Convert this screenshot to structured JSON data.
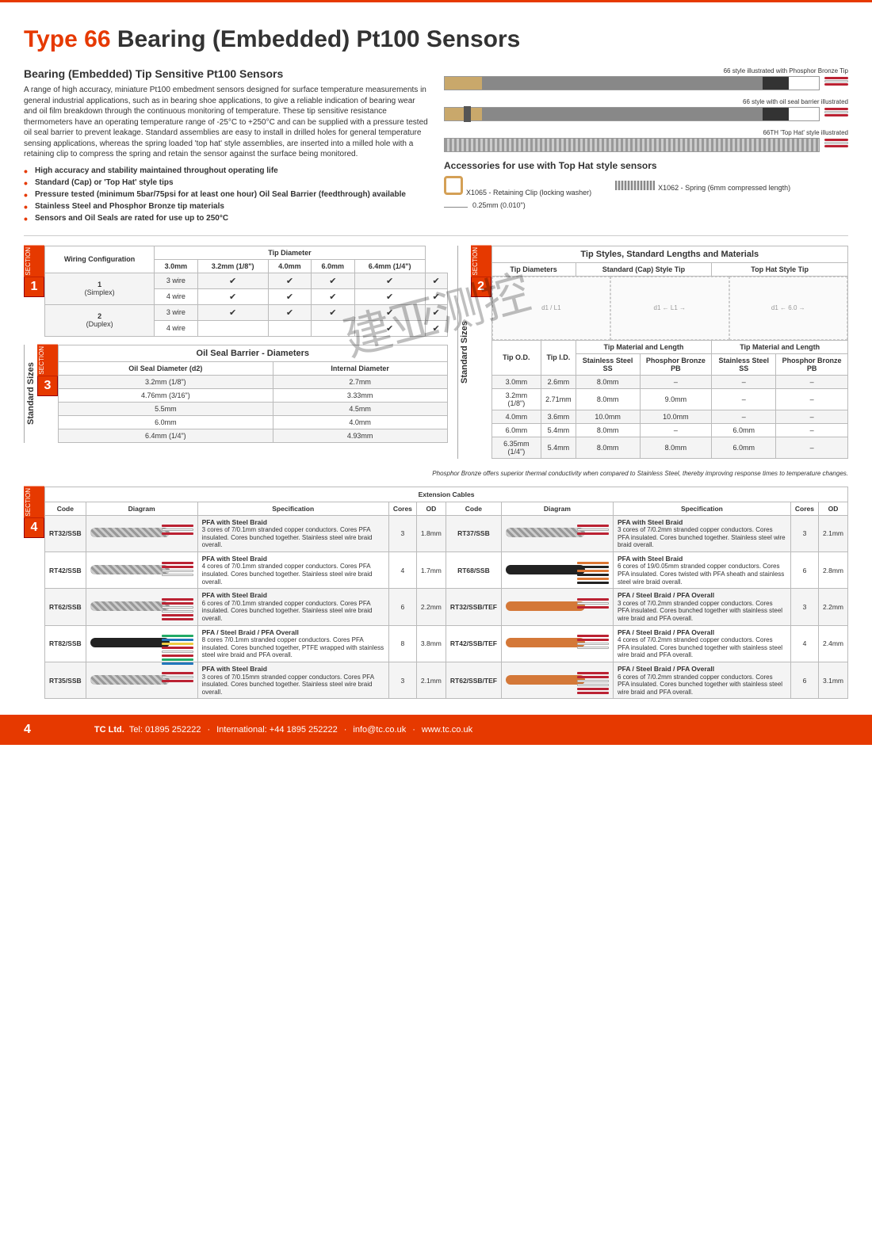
{
  "title_prefix": "Type 66",
  "title_rest": "Bearing (Embedded) Pt100 Sensors",
  "intro": {
    "heading": "Bearing (Embedded) Tip Sensitive Pt100 Sensors",
    "paragraph": "A range of high accuracy, miniature Pt100 embedment sensors designed for surface temperature measurements in general industrial applications, such as in bearing shoe applications, to give a reliable indication of bearing wear and oil film breakdown through the continuous monitoring of temperature. These tip sensitive resistance thermometers have an operating temperature range of -25°C to +250°C and can be supplied with a pressure tested oil seal barrier to prevent leakage. Standard assemblies are easy to install in drilled holes for general temperature sensing applications, whereas the spring loaded 'top hat' style assemblies, are inserted into a milled hole with a retaining clip to compress the spring and retain the sensor against the surface being monitored.",
    "bullets": [
      "High accuracy and stability maintained throughout operating life",
      "Standard (Cap) or 'Top Hat' style tips",
      "Pressure tested (minimum 5bar/75psi for at least one hour) Oil Seal Barrier (feedthrough) available",
      "Stainless Steel and Phosphor Bronze tip materials",
      "Sensors and Oil Seals are rated for use up to 250°C"
    ]
  },
  "illustrations": {
    "a": "66 style illustrated with Phosphor Bronze Tip",
    "b": "66 style with oil seal barrier illustrated",
    "c": "66TH 'Top Hat' style illustrated"
  },
  "accessories": {
    "heading": "Accessories for use with Top Hat style sensors",
    "x1065": "X1065 - Retaining Clip (locking washer)",
    "x1062": "X1062 - Spring (6mm compressed length)",
    "thickness": "0.25mm (0.010\")"
  },
  "section1": {
    "title": "Wiring Configuration",
    "tipdia": "Tip Diameter",
    "cols": [
      "3.0mm",
      "3.2mm (1/8\")",
      "4.0mm",
      "6.0mm",
      "6.4mm (1/4\")"
    ],
    "rows": [
      {
        "group": "1 (Simplex)",
        "label": "3 wire",
        "cells": [
          true,
          true,
          true,
          true,
          true
        ]
      },
      {
        "group": "",
        "label": "4 wire",
        "cells": [
          true,
          true,
          true,
          true,
          true
        ]
      },
      {
        "group": "2 (Duplex)",
        "label": "3 wire",
        "cells": [
          true,
          true,
          true,
          true,
          true
        ]
      },
      {
        "group": "",
        "label": "4 wire",
        "cells": [
          false,
          false,
          false,
          true,
          true
        ]
      }
    ]
  },
  "section2": {
    "title": "Tip Styles, Standard Lengths and Materials",
    "sub1": "Tip Diameters",
    "sub2": "Standard (Cap) Style Tip",
    "sub3": "Top Hat Style Tip",
    "cols": [
      "Tip O.D.",
      "Tip I.D.",
      "Stainless Steel SS",
      "Phosphor Bronze PB",
      "Stainless Steel SS",
      "Phosphor Bronze PB"
    ],
    "group1": "Tip Material and Length",
    "rows": [
      [
        "3.0mm",
        "2.6mm",
        "8.0mm",
        "–",
        "–",
        "–"
      ],
      [
        "3.2mm (1/8\")",
        "2.71mm",
        "8.0mm",
        "9.0mm",
        "–",
        "–"
      ],
      [
        "4.0mm",
        "3.6mm",
        "10.0mm",
        "10.0mm",
        "–",
        "–"
      ],
      [
        "6.0mm",
        "5.4mm",
        "8.0mm",
        "–",
        "6.0mm",
        "–"
      ],
      [
        "6.35mm (1/4\")",
        "5.4mm",
        "8.0mm",
        "8.0mm",
        "6.0mm",
        "–"
      ]
    ]
  },
  "section3": {
    "title": "Oil Seal Barrier - Diameters",
    "col1": "Oil Seal Diameter (d2)",
    "col2": "Internal Diameter",
    "rows": [
      [
        "3.2mm (1/8\")",
        "2.7mm"
      ],
      [
        "4.76mm (3/16\")",
        "3.33mm"
      ],
      [
        "5.5mm",
        "4.5mm"
      ],
      [
        "6.0mm",
        "4.0mm"
      ],
      [
        "6.4mm (1/4\")",
        "4.93mm"
      ]
    ]
  },
  "note": "Phosphor Bronze offers superior thermal conductivity when compared to Stainless Steel, thereby improving response times to temperature changes.",
  "section4": {
    "title": "Extension Cables",
    "cols": [
      "Code",
      "Diagram",
      "Specification",
      "Cores",
      "OD"
    ],
    "left": [
      {
        "code": "RT32/SSB",
        "spec_t": "PFA with Steel Braid",
        "spec": "3 cores of 7/0.1mm stranded copper conductors. Cores PFA insulated. Cores bunched together. Stainless steel wire braid overall.",
        "cores": "3",
        "od": "1.8mm",
        "sheath": "braid",
        "wires": [
          "#b23",
          "#fff",
          "#b23"
        ]
      },
      {
        "code": "RT42/SSB",
        "spec_t": "PFA with Steel Braid",
        "spec": "4 cores of 7/0.1mm stranded copper conductors. Cores PFA insulated. Cores bunched together. Stainless steel wire braid overall.",
        "cores": "4",
        "od": "1.7mm",
        "sheath": "braid",
        "wires": [
          "#b23",
          "#b23",
          "#fff",
          "#fff"
        ]
      },
      {
        "code": "RT62/SSB",
        "spec_t": "PFA with Steel Braid",
        "spec": "6 cores of 7/0.1mm stranded copper conductors. Cores PFA insulated. Cores bunched together. Stainless steel wire braid overall.",
        "cores": "6",
        "od": "2.2mm",
        "sheath": "braid",
        "wires": [
          "#b23",
          "#b23",
          "#fff",
          "#fff",
          "#b23",
          "#b23"
        ]
      },
      {
        "code": "RT82/SSB",
        "spec_t": "PFA / Steel Braid / PFA Overall",
        "spec": "8 cores 7/0.1mm stranded copper conductors. Cores PFA insulated. Cores bunched together, PTFE wrapped with stainless steel wire braid and PFA overall.",
        "cores": "8",
        "od": "3.8mm",
        "sheath": "blackpvc",
        "wires": [
          "#2a6",
          "#27b",
          "#ec4",
          "#b23",
          "#fff",
          "#b23",
          "#2a6",
          "#27b"
        ]
      },
      {
        "code": "RT35/SSB",
        "spec_t": "PFA with Steel Braid",
        "spec": "3 cores of 7/0.15mm stranded copper conductors. Cores PFA insulated. Cores bunched together. Stainless steel wire braid overall.",
        "cores": "3",
        "od": "2.1mm",
        "sheath": "braid",
        "wires": [
          "#b23",
          "#fff",
          "#b23"
        ]
      }
    ],
    "right": [
      {
        "code": "RT37/SSB",
        "spec_t": "PFA with Steel Braid",
        "spec": "3 cores of 7/0.2mm stranded copper conductors. Cores PFA insulated. Cores bunched together. Stainless steel wire braid overall.",
        "cores": "3",
        "od": "2.1mm",
        "sheath": "braid",
        "wires": [
          "#b23",
          "#fff",
          "#b23"
        ]
      },
      {
        "code": "RT68/SSB",
        "spec_t": "PFA with Steel Braid",
        "spec": "6 cores of 19/0.05mm stranded copper conductors. Cores PFA insulated. Cores twisted with PFA sheath and stainless steel wire braid overall.",
        "cores": "6",
        "od": "2.8mm",
        "sheath": "blackpvc",
        "wires": [
          "#d73",
          "#222",
          "#d73",
          "#222",
          "#d73",
          "#222"
        ]
      },
      {
        "code": "RT32/SSB/TEF",
        "spec_t": "PFA / Steel Braid / PFA Overall",
        "spec": "3 cores of 7/0.2mm stranded copper conductors. Cores PFA insulated. Cores bunched together with stainless steel wire braid and PFA overall.",
        "cores": "3",
        "od": "2.2mm",
        "sheath": "orangepvc",
        "wires": [
          "#b23",
          "#fff",
          "#b23"
        ]
      },
      {
        "code": "RT42/SSB/TEF",
        "spec_t": "PFA / Steel Braid / PFA Overall",
        "spec": "4 cores of 7/0.2mm stranded copper conductors. Cores PFA insulated. Cores bunched together with stainless steel wire braid and PFA overall.",
        "cores": "4",
        "od": "2.4mm",
        "sheath": "orangepvc",
        "wires": [
          "#b23",
          "#b23",
          "#fff",
          "#fff"
        ]
      },
      {
        "code": "RT62/SSB/TEF",
        "spec_t": "PFA / Steel Braid / PFA Overall",
        "spec": "6 cores of 7/0.2mm stranded copper conductors. Cores PFA insulated. Cores bunched together with stainless steel wire braid and PFA overall.",
        "cores": "6",
        "od": "3.1mm",
        "sheath": "orangepvc",
        "wires": [
          "#b23",
          "#b23",
          "#fff",
          "#fff",
          "#b23",
          "#b23"
        ]
      }
    ]
  },
  "footer": {
    "page": "4",
    "company": "TC Ltd.",
    "tel": "Tel: 01895 252222",
    "intl": "International: +44 1895 252222",
    "email": "info@tc.co.uk",
    "web": "www.tc.co.uk"
  },
  "standard_sizes_label": "Standard Sizes",
  "colors": {
    "accent": "#e63900"
  }
}
